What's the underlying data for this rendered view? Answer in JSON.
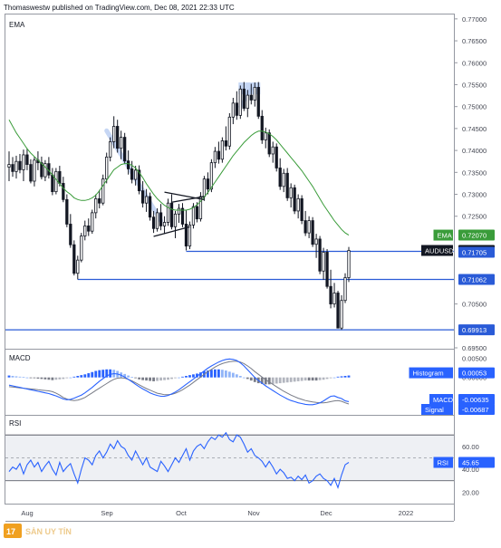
{
  "header": {
    "publisher": "Thomaswestw published on TradingView.com, Dec 08, 2021 22:33 UTC"
  },
  "colors": {
    "candle": "#131722",
    "ema": "#3a9c3a",
    "level": "#2a5bd7",
    "price_badge": "#131722",
    "macd": "#2962ff",
    "signal": "#787b86",
    "hist_pos": "#2962ff",
    "hist_pos_light": "#90b4f8",
    "hist_neg": "#787b86",
    "hist_neg_light": "#b2b5be",
    "rsi": "#2962ff",
    "rsi_band": "#eef0f4",
    "pattern": "#b8cdf2",
    "trendline": "#131722",
    "grid_border": "#9598a1"
  },
  "icons": {
    "logo": "tradingview-logo-icon",
    "watermark": "san-uy-tin-watermark-icon"
  },
  "watermark": {
    "text": "SÀN UY TÍN"
  },
  "chart_data": [
    {
      "type": "candlestick",
      "title": "",
      "pane_label": "EMA",
      "symbol": "AUDUSD",
      "ylim": [
        0.695,
        0.771
      ],
      "y_ticks": [
        "0.77000",
        "0.76500",
        "0.76000",
        "0.75500",
        "0.75000",
        "0.74500",
        "0.74000",
        "0.73500",
        "0.73000",
        "0.72500",
        "0.70500",
        "0.69500"
      ],
      "x_ticks": [
        "Aug",
        "Sep",
        "Oct",
        "Nov",
        "Dec",
        "2022"
      ],
      "candles": [
        [
          0.7362,
          0.7398,
          0.733,
          0.7368
        ],
        [
          0.7368,
          0.7385,
          0.734,
          0.7352
        ],
        [
          0.7352,
          0.7388,
          0.7336,
          0.7375
        ],
        [
          0.7375,
          0.7392,
          0.7348,
          0.7356
        ],
        [
          0.7356,
          0.7402,
          0.733,
          0.739
        ],
        [
          0.739,
          0.7405,
          0.7355,
          0.7368
        ],
        [
          0.7368,
          0.738,
          0.7325,
          0.733
        ],
        [
          0.733,
          0.7385,
          0.7318,
          0.7378
        ],
        [
          0.7378,
          0.7398,
          0.7355,
          0.7372
        ],
        [
          0.7372,
          0.7386,
          0.7334,
          0.734
        ],
        [
          0.734,
          0.7378,
          0.733,
          0.737
        ],
        [
          0.737,
          0.7385,
          0.7336,
          0.7344
        ],
        [
          0.7344,
          0.736,
          0.7298,
          0.7306
        ],
        [
          0.7306,
          0.736,
          0.73,
          0.7352
        ],
        [
          0.7352,
          0.7365,
          0.7318,
          0.7325
        ],
        [
          0.7325,
          0.734,
          0.7282,
          0.7288
        ],
        [
          0.7288,
          0.73,
          0.7225,
          0.7232
        ],
        [
          0.7232,
          0.7255,
          0.7178,
          0.7185
        ],
        [
          0.7185,
          0.7195,
          0.7115,
          0.712
        ],
        [
          0.712,
          0.716,
          0.7106,
          0.715
        ],
        [
          0.715,
          0.7212,
          0.7145,
          0.7205
        ],
        [
          0.7205,
          0.724,
          0.7195,
          0.7228
        ],
        [
          0.7228,
          0.7245,
          0.7205,
          0.7216
        ],
        [
          0.7216,
          0.7265,
          0.721,
          0.7258
        ],
        [
          0.7258,
          0.73,
          0.7245,
          0.729
        ],
        [
          0.729,
          0.731,
          0.7268,
          0.728
        ],
        [
          0.728,
          0.7345,
          0.7275,
          0.7335
        ],
        [
          0.7335,
          0.7395,
          0.7325,
          0.7385
        ],
        [
          0.7385,
          0.743,
          0.7375,
          0.742
        ],
        [
          0.742,
          0.7478,
          0.7405,
          0.7455
        ],
        [
          0.7455,
          0.747,
          0.7395,
          0.7405
        ],
        [
          0.7405,
          0.7445,
          0.738,
          0.743
        ],
        [
          0.743,
          0.744,
          0.737,
          0.7376
        ],
        [
          0.7376,
          0.74,
          0.7345,
          0.7358
        ],
        [
          0.7358,
          0.7376,
          0.7325,
          0.7334
        ],
        [
          0.7334,
          0.7365,
          0.732,
          0.7355
        ],
        [
          0.7355,
          0.7366,
          0.73,
          0.7308
        ],
        [
          0.7308,
          0.733,
          0.727,
          0.728
        ],
        [
          0.728,
          0.7312,
          0.726,
          0.7295
        ],
        [
          0.7295,
          0.7304,
          0.724,
          0.7248
        ],
        [
          0.7248,
          0.7262,
          0.7212,
          0.7222
        ],
        [
          0.7222,
          0.7268,
          0.7215,
          0.7258
        ],
        [
          0.7258,
          0.7278,
          0.7218,
          0.7228
        ],
        [
          0.7228,
          0.725,
          0.721,
          0.7236
        ],
        [
          0.7236,
          0.729,
          0.7228,
          0.728
        ],
        [
          0.728,
          0.73,
          0.722,
          0.7226
        ],
        [
          0.7226,
          0.7262,
          0.72,
          0.7255
        ],
        [
          0.7255,
          0.7278,
          0.7235,
          0.7268
        ],
        [
          0.7268,
          0.728,
          0.7225,
          0.7232
        ],
        [
          0.7232,
          0.7265,
          0.7172,
          0.7182
        ],
        [
          0.7182,
          0.7238,
          0.7175,
          0.723
        ],
        [
          0.723,
          0.728,
          0.7222,
          0.7272
        ],
        [
          0.7272,
          0.7282,
          0.7236,
          0.7244
        ],
        [
          0.7244,
          0.7305,
          0.7238,
          0.7295
        ],
        [
          0.7295,
          0.7342,
          0.7285,
          0.7335
        ],
        [
          0.7335,
          0.735,
          0.73,
          0.7312
        ],
        [
          0.7312,
          0.738,
          0.7305,
          0.7372
        ],
        [
          0.7372,
          0.7408,
          0.736,
          0.7398
        ],
        [
          0.7398,
          0.742,
          0.737,
          0.738
        ],
        [
          0.738,
          0.743,
          0.7372,
          0.7422
        ],
        [
          0.7422,
          0.7455,
          0.74,
          0.741
        ],
        [
          0.741,
          0.7485,
          0.7402,
          0.7476
        ],
        [
          0.7476,
          0.752,
          0.746,
          0.7508
        ],
        [
          0.7508,
          0.7535,
          0.747,
          0.748
        ],
        [
          0.748,
          0.7548,
          0.7472,
          0.754
        ],
        [
          0.754,
          0.7556,
          0.749,
          0.7496
        ],
        [
          0.7496,
          0.7538,
          0.7476,
          0.7526
        ],
        [
          0.7526,
          0.7552,
          0.7505,
          0.7515
        ],
        [
          0.7515,
          0.7555,
          0.75,
          0.7544
        ],
        [
          0.7544,
          0.7556,
          0.7472,
          0.7478
        ],
        [
          0.7478,
          0.7492,
          0.7415,
          0.7424
        ],
        [
          0.7424,
          0.7452,
          0.7405,
          0.744
        ],
        [
          0.744,
          0.7448,
          0.7385,
          0.7392
        ],
        [
          0.7392,
          0.742,
          0.7372,
          0.7408
        ],
        [
          0.7408,
          0.7416,
          0.7352,
          0.736
        ],
        [
          0.736,
          0.7382,
          0.731,
          0.7318
        ],
        [
          0.7318,
          0.7358,
          0.7305,
          0.7348
        ],
        [
          0.7348,
          0.736,
          0.7285,
          0.7292
        ],
        [
          0.7292,
          0.7325,
          0.727,
          0.7315
        ],
        [
          0.7315,
          0.7322,
          0.7255,
          0.7262
        ],
        [
          0.7262,
          0.73,
          0.7245,
          0.729
        ],
        [
          0.729,
          0.7298,
          0.7232,
          0.724
        ],
        [
          0.724,
          0.7262,
          0.7205,
          0.7212
        ],
        [
          0.7212,
          0.725,
          0.72,
          0.724
        ],
        [
          0.724,
          0.7248,
          0.718,
          0.7186
        ],
        [
          0.7186,
          0.721,
          0.7155,
          0.7198
        ],
        [
          0.7198,
          0.7205,
          0.7118,
          0.7125
        ],
        [
          0.7125,
          0.7178,
          0.7105,
          0.7168
        ],
        [
          0.7168,
          0.7175,
          0.7085,
          0.709
        ],
        [
          0.709,
          0.7128,
          0.704,
          0.705
        ],
        [
          0.705,
          0.7098,
          0.7042,
          0.7075
        ],
        [
          0.7075,
          0.708,
          0.6995,
          0.6995
        ],
        [
          0.6995,
          0.707,
          0.6991,
          0.7058
        ],
        [
          0.7058,
          0.712,
          0.7052,
          0.711
        ],
        [
          0.711,
          0.718,
          0.71,
          0.7172
        ]
      ],
      "ema": [
        0.747,
        0.7455,
        0.744,
        0.7428,
        0.7416,
        0.7404,
        0.7394,
        0.7386,
        0.7378,
        0.737,
        0.7362,
        0.7354,
        0.7344,
        0.7334,
        0.7324,
        0.7314,
        0.7306,
        0.73,
        0.7292,
        0.7288,
        0.7286,
        0.7286,
        0.7288,
        0.7292,
        0.7298,
        0.7308,
        0.732,
        0.7332,
        0.7344,
        0.7356,
        0.7362,
        0.7368,
        0.737,
        0.737,
        0.7366,
        0.736,
        0.735,
        0.7338,
        0.7324,
        0.7312,
        0.73,
        0.729,
        0.7282,
        0.7275,
        0.727,
        0.7266,
        0.7264,
        0.7264,
        0.7264,
        0.7264,
        0.7266,
        0.727,
        0.7276,
        0.7284,
        0.7294,
        0.7304,
        0.7316,
        0.7328,
        0.734,
        0.7352,
        0.7364,
        0.7376,
        0.7388,
        0.7398,
        0.7408,
        0.7418,
        0.7426,
        0.7434,
        0.744,
        0.7444,
        0.7444,
        0.7442,
        0.7438,
        0.7432,
        0.7424,
        0.7414,
        0.7404,
        0.7394,
        0.7384,
        0.7374,
        0.7364,
        0.7354,
        0.7342,
        0.733,
        0.7318,
        0.7304,
        0.729,
        0.7276,
        0.7264,
        0.7252,
        0.724,
        0.723,
        0.722,
        0.7212,
        0.7207
      ],
      "levels": [
        {
          "value": 0.717,
          "label": "0.71705"
        },
        {
          "value": 0.7106,
          "label": "0.71062"
        },
        {
          "value": 0.6991,
          "label": "0.69913"
        }
      ],
      "labels": {
        "ema": "EMA",
        "ema_value": "0.72070",
        "symbol": "AUDUSD",
        "price": "0.71723"
      }
    },
    {
      "type": "macd",
      "pane_label": "MACD",
      "ylim": [
        -0.0095,
        0.007
      ],
      "y_ticks": [
        "0.00500",
        "0.00000"
      ],
      "histogram": [
        0.0005,
        0.0004,
        0.0003,
        0.0002,
        0.0001,
        0.0,
        -0.0001,
        -0.0002,
        -0.0003,
        -0.0004,
        -0.0005,
        -0.0006,
        -0.0007,
        -0.0006,
        -0.0005,
        -0.0004,
        -0.0002,
        0.0,
        0.0002,
        0.0004,
        0.0006,
        0.0008,
        0.0011,
        0.0014,
        0.0017,
        0.0019,
        0.002,
        0.0021,
        0.0021,
        0.002,
        0.0017,
        0.0013,
        0.0009,
        0.0005,
        0.0001,
        -0.0002,
        -0.0005,
        -0.0007,
        -0.0008,
        -0.0009,
        -0.001,
        -0.0009,
        -0.0008,
        -0.0007,
        -0.0006,
        -0.0004,
        -0.0002,
        0.0,
        0.0002,
        0.0004,
        0.0006,
        0.0008,
        0.001,
        0.0013,
        0.0016,
        0.0018,
        0.002,
        0.0021,
        0.0021,
        0.002,
        0.0018,
        0.0015,
        0.0012,
        0.0008,
        0.0004,
        0.0,
        -0.0004,
        -0.0008,
        -0.0012,
        -0.0015,
        -0.0017,
        -0.0018,
        -0.0018,
        -0.0017,
        -0.0016,
        -0.0015,
        -0.0014,
        -0.0013,
        -0.0012,
        -0.0011,
        -0.001,
        -0.0009,
        -0.0008,
        -0.0008,
        -0.0008,
        -0.0008,
        -0.0007,
        -0.0006,
        -0.0004,
        -0.0002,
        0.0,
        0.0002,
        0.0003,
        0.0004,
        0.0005
      ],
      "macd": [
        -0.002,
        -0.0022,
        -0.0024,
        -0.0026,
        -0.0028,
        -0.003,
        -0.0032,
        -0.0034,
        -0.0036,
        -0.0038,
        -0.004,
        -0.0042,
        -0.0045,
        -0.0048,
        -0.0052,
        -0.0056,
        -0.0058,
        -0.0057,
        -0.0054,
        -0.005,
        -0.0046,
        -0.004,
        -0.0033,
        -0.0026,
        -0.0018,
        -0.001,
        -0.0003,
        0.0004,
        0.0008,
        0.001,
        0.0009,
        0.0006,
        0.0001,
        -0.0005,
        -0.0011,
        -0.0018,
        -0.0024,
        -0.003,
        -0.0035,
        -0.004,
        -0.0044,
        -0.0047,
        -0.0049,
        -0.0049,
        -0.0047,
        -0.0043,
        -0.0038,
        -0.0032,
        -0.0025,
        -0.0018,
        -0.0011,
        -0.0004,
        0.0003,
        0.001,
        0.0017,
        0.0024,
        0.003,
        0.0035,
        0.004,
        0.0044,
        0.0047,
        0.0048,
        0.0047,
        0.0044,
        0.0038,
        0.003,
        0.002,
        0.001,
        0.0,
        -0.0008,
        -0.0015,
        -0.0022,
        -0.0028,
        -0.0034,
        -0.004,
        -0.0046,
        -0.0051,
        -0.0056,
        -0.006,
        -0.0063,
        -0.0066,
        -0.0068,
        -0.007,
        -0.0071,
        -0.0071,
        -0.0069,
        -0.0066,
        -0.0061,
        -0.0055,
        -0.0049,
        -0.0048,
        -0.0052,
        -0.0055,
        -0.0061,
        -0.0063
      ],
      "signal": [
        -0.0024,
        -0.0025,
        -0.0026,
        -0.0027,
        -0.0028,
        -0.0029,
        -0.003,
        -0.0031,
        -0.0032,
        -0.0033,
        -0.0034,
        -0.0035,
        -0.0037,
        -0.0041,
        -0.0046,
        -0.0052,
        -0.0056,
        -0.0059,
        -0.006,
        -0.0059,
        -0.0056,
        -0.0052,
        -0.0046,
        -0.004,
        -0.0034,
        -0.0028,
        -0.0022,
        -0.0016,
        -0.001,
        -0.0005,
        -0.0002,
        -0.0001,
        -0.0002,
        -0.0005,
        -0.0009,
        -0.0014,
        -0.0019,
        -0.0024,
        -0.0029,
        -0.0033,
        -0.0037,
        -0.0041,
        -0.0043,
        -0.0045,
        -0.0045,
        -0.0044,
        -0.0041,
        -0.0037,
        -0.0032,
        -0.0026,
        -0.002,
        -0.0013,
        -0.0006,
        0.0001,
        0.0008,
        0.0015,
        0.0021,
        0.0027,
        0.0032,
        0.0036,
        0.0039,
        0.0041,
        0.0042,
        0.0042,
        0.004,
        0.0036,
        0.003,
        0.0023,
        0.0015,
        0.0008,
        0.0001,
        -0.0006,
        -0.0012,
        -0.0018,
        -0.0024,
        -0.003,
        -0.0036,
        -0.0041,
        -0.0046,
        -0.005,
        -0.0054,
        -0.0057,
        -0.006,
        -0.0062,
        -0.0064,
        -0.0065,
        -0.0066,
        -0.0066,
        -0.0065,
        -0.0063,
        -0.0061,
        -0.006,
        -0.0062,
        -0.0066,
        -0.0069
      ],
      "labels": {
        "histogram": "Histogram",
        "histogram_value": "0.00053",
        "macd": "MACD",
        "macd_value": "-0.00635",
        "signal": "Signal",
        "signal_value": "-0.00687"
      }
    },
    {
      "type": "line",
      "pane_label": "RSI",
      "ylim": [
        10,
        86
      ],
      "band": [
        30,
        70
      ],
      "mid": 50,
      "y_ticks": [
        "60.00",
        "40.00",
        "20.00"
      ],
      "values": [
        38,
        42,
        40,
        45,
        36,
        44,
        48,
        42,
        46,
        38,
        43,
        47,
        40,
        35,
        46,
        38,
        42,
        45,
        36,
        28,
        40,
        50,
        48,
        44,
        52,
        56,
        50,
        55,
        62,
        58,
        65,
        60,
        58,
        52,
        48,
        56,
        50,
        44,
        50,
        42,
        40,
        38,
        47,
        43,
        38,
        44,
        50,
        46,
        52,
        58,
        48,
        56,
        60,
        62,
        58,
        64,
        68,
        66,
        70,
        68,
        72,
        66,
        64,
        70,
        68,
        62,
        55,
        58,
        52,
        50,
        47,
        42,
        47,
        42,
        36,
        40,
        37,
        32,
        33,
        30,
        34,
        31,
        35,
        28,
        30,
        34,
        36,
        32,
        30,
        26,
        32,
        24,
        35,
        44,
        46
      ],
      "labels": {
        "rsi": "RSI",
        "rsi_value": "45.65"
      }
    }
  ]
}
